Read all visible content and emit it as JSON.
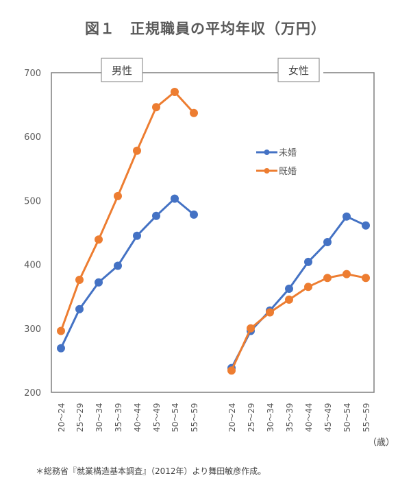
{
  "title": "図１　正規職員の平均年収（万円）",
  "panels": {
    "male_label": "男性",
    "female_label": "女性"
  },
  "legend": {
    "items": [
      {
        "label": "未婚",
        "color": "#4472C4"
      },
      {
        "label": "既婚",
        "color": "#ED7D31"
      }
    ]
  },
  "axis": {
    "y_ticks": [
      "700",
      "600",
      "500",
      "400",
      "300",
      "200"
    ],
    "x_unit": "（歳）"
  },
  "footnote": "＊総務省『就業構造基本調査』（2012年）より舞田敏彦作成。",
  "chart_data": {
    "type": "line",
    "title": "図１　正規職員の平均年収（万円）",
    "xlabel": "（歳）",
    "ylabel": "万円",
    "ylim": [
      200,
      700
    ],
    "yticks": [
      200,
      300,
      400,
      500,
      600,
      700
    ],
    "grid": false,
    "legend_position": "inside-right",
    "categories": [
      "20～24",
      "25～29",
      "30～34",
      "35～39",
      "40～44",
      "45～49",
      "50～54",
      "55～59"
    ],
    "panels": [
      {
        "name": "男性",
        "series": [
          {
            "name": "未婚",
            "color": "#4472C4",
            "values": [
              269,
              330,
              372,
              398,
              445,
              476,
              503,
              478
            ]
          },
          {
            "name": "既婚",
            "color": "#ED7D31",
            "values": [
              296,
              376,
              439,
              507,
              578,
              646,
              670,
              637
            ]
          }
        ]
      },
      {
        "name": "女性",
        "series": [
          {
            "name": "未婚",
            "color": "#4472C4",
            "values": [
              238,
              296,
              328,
              362,
              404,
              435,
              475,
              461
            ]
          },
          {
            "name": "既婚",
            "color": "#ED7D31",
            "values": [
              234,
              300,
              325,
              345,
              365,
              379,
              385,
              379
            ]
          }
        ]
      }
    ]
  }
}
